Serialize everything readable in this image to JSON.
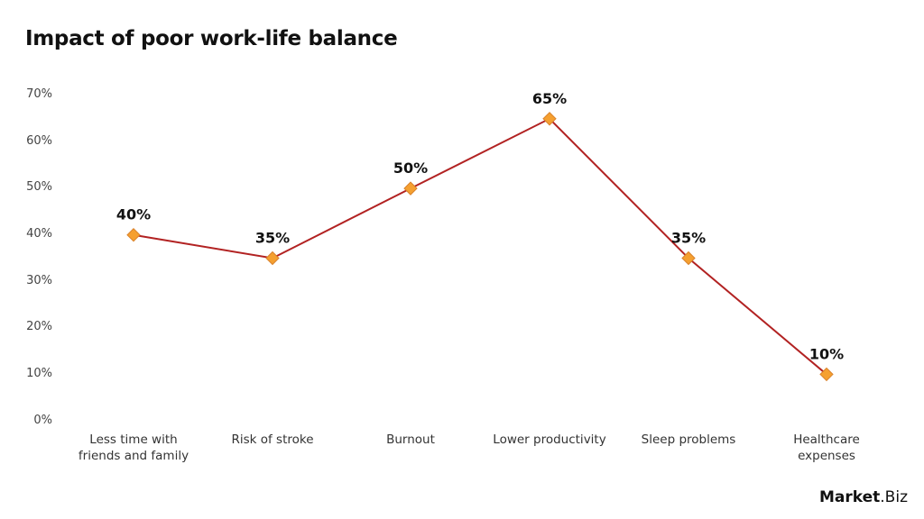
{
  "title": "Impact of poor work-life balance",
  "y_ticks": [
    "70%",
    "60%",
    "50%",
    "40%",
    "30%",
    "20%",
    "10%",
    "0%"
  ],
  "x_labels": [
    [
      "Less time with",
      "friends and family"
    ],
    [
      "Risk of stroke"
    ],
    [
      "Burnout"
    ],
    [
      "Lower productivity"
    ],
    [
      "Sleep problems"
    ],
    [
      "Healthcare",
      "expenses"
    ]
  ],
  "data_labels": [
    "40%",
    "35%",
    "50%",
    "65%",
    "35%",
    "10%"
  ],
  "logo": {
    "bold": "Market",
    "rest": ".Biz"
  },
  "colors": {
    "line": "#b22222",
    "marker_fill": "#f5a030",
    "marker_stroke": "#d9822b"
  },
  "chart_data": {
    "type": "line",
    "title": "Impact of poor work-life balance",
    "categories": [
      "Less time with friends and family",
      "Risk of stroke",
      "Burnout",
      "Lower productivity",
      "Sleep problems",
      "Healthcare expenses"
    ],
    "values": [
      40,
      35,
      50,
      65,
      35,
      10
    ],
    "xlabel": "",
    "ylabel": "",
    "ylim": [
      0,
      70
    ],
    "y_tick_step": 10,
    "y_format": "percent",
    "grid": false,
    "legend": "none",
    "data_labels": true,
    "marker": "diamond"
  }
}
